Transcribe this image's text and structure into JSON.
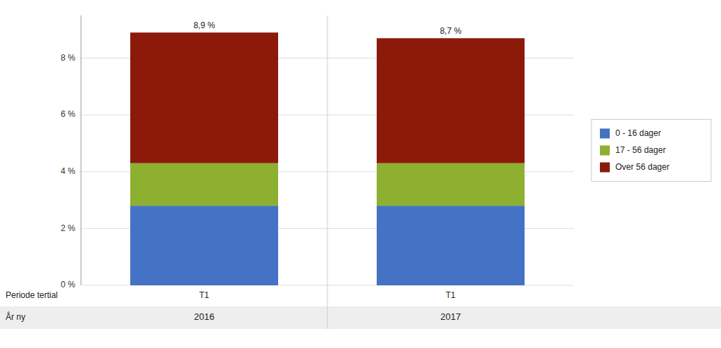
{
  "chart_data": {
    "type": "bar",
    "stacked": true,
    "categories": [
      "2016",
      "2017"
    ],
    "xlabel": "År ny",
    "tertial_label": "Periode tertial",
    "tertial_labels": [
      "T1",
      "T1"
    ],
    "series": [
      {
        "name": "0 - 16 dager",
        "color": "#4472C4",
        "values": [
          2.8,
          2.8
        ]
      },
      {
        "name": "17 - 56 dager",
        "color": "#8DB030",
        "values": [
          1.5,
          1.5
        ]
      },
      {
        "name": "Over 56 dager",
        "color": "#8B1A0A",
        "values": [
          4.6,
          4.4
        ]
      }
    ],
    "totals": [
      8.9,
      8.7
    ],
    "total_labels": [
      "8,9 %",
      "8,7 %"
    ],
    "ylim": [
      0,
      9.5
    ],
    "yticks": [
      {
        "value": 0,
        "label": "0 %"
      },
      {
        "value": 2,
        "label": "2 %"
      },
      {
        "value": 4,
        "label": "4 %"
      },
      {
        "value": 6,
        "label": "6 %"
      },
      {
        "value": 8,
        "label": "8 %"
      }
    ],
    "grid": true,
    "legend": "right"
  }
}
